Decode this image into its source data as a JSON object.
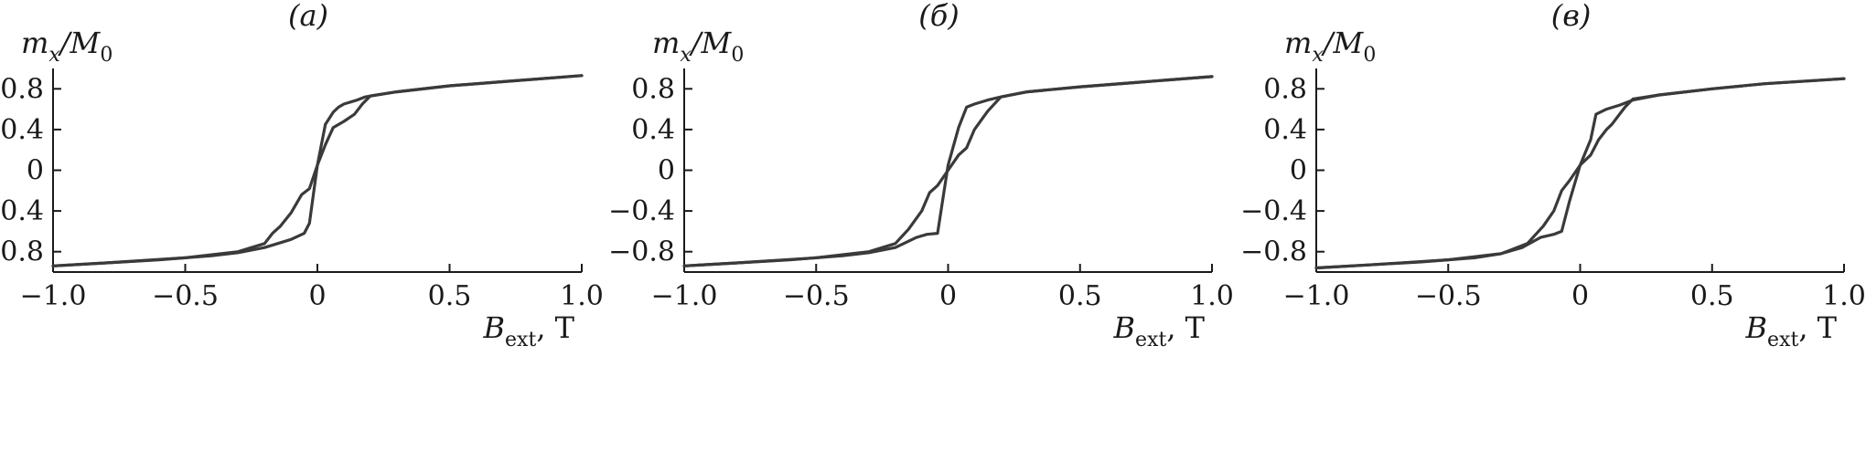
{
  "chart_data": [
    {
      "type": "line",
      "panel_label": "(а)",
      "ylabel_main": "m",
      "ylabel_sub": "x",
      "ylabel_rest": "/M",
      "ylabel_sub2": "0",
      "xlabel_main": "B",
      "xlabel_sub": "ext",
      "xlabel_unit": ", T",
      "xlim": [
        -1.0,
        1.0
      ],
      "ylim": [
        -1.0,
        1.0
      ],
      "xticks": [
        -1.0,
        -0.5,
        0,
        0.5,
        1.0
      ],
      "xtick_labels": [
        "−1.0",
        "−0.5",
        "0",
        "0.5",
        "1.0"
      ],
      "yticks": [
        -0.8,
        -0.4,
        0,
        0.4,
        0.8
      ],
      "ytick_labels": [
        "−0.8",
        "−0.4",
        "0",
        "0.4",
        "0.8"
      ],
      "series": [
        {
          "x": [
            -1.0,
            -0.8,
            -0.6,
            -0.4,
            -0.3,
            -0.2,
            -0.1,
            -0.05,
            -0.03,
            0,
            0.03,
            0.06,
            0.08,
            0.1,
            0.15,
            0.18,
            0.3,
            0.5,
            0.7,
            1.0
          ],
          "y": [
            -0.94,
            -0.91,
            -0.88,
            -0.84,
            -0.81,
            -0.76,
            -0.68,
            -0.62,
            -0.52,
            0.05,
            0.45,
            0.57,
            0.62,
            0.65,
            0.69,
            0.72,
            0.77,
            0.83,
            0.87,
            0.93
          ]
        },
        {
          "x": [
            1.0,
            0.7,
            0.5,
            0.3,
            0.2,
            0.17,
            0.14,
            0.1,
            0.06,
            0.03,
            0,
            -0.03,
            -0.06,
            -0.1,
            -0.14,
            -0.17,
            -0.2,
            -0.3,
            -0.5,
            -0.8,
            -1.0
          ],
          "y": [
            0.93,
            0.87,
            0.83,
            0.77,
            0.73,
            0.65,
            0.55,
            0.48,
            0.42,
            0.25,
            0.05,
            -0.18,
            -0.24,
            -0.42,
            -0.55,
            -0.62,
            -0.72,
            -0.8,
            -0.86,
            -0.91,
            -0.94
          ]
        }
      ]
    },
    {
      "type": "line",
      "panel_label": "(б)",
      "ylabel_main": "m",
      "ylabel_sub": "x",
      "ylabel_rest": "/M",
      "ylabel_sub2": "0",
      "xlabel_main": "B",
      "xlabel_sub": "ext",
      "xlabel_unit": ", T",
      "xlim": [
        -1.0,
        1.0
      ],
      "ylim": [
        -1.0,
        1.0
      ],
      "xticks": [
        -1.0,
        -0.5,
        0,
        0.5,
        1.0
      ],
      "xtick_labels": [
        "−1.0",
        "−0.5",
        "0",
        "0.5",
        "1.0"
      ],
      "yticks": [
        -0.8,
        -0.4,
        0,
        0.4,
        0.8
      ],
      "ytick_labels": [
        "−0.8",
        "−0.4",
        "0",
        "0.4",
        "0.8"
      ],
      "series": [
        {
          "x": [
            -1.0,
            -0.8,
            -0.6,
            -0.4,
            -0.3,
            -0.2,
            -0.12,
            -0.08,
            -0.04,
            0,
            0.04,
            0.07,
            0.1,
            0.15,
            0.2,
            0.3,
            0.5,
            0.7,
            1.0
          ],
          "y": [
            -0.94,
            -0.91,
            -0.88,
            -0.84,
            -0.81,
            -0.76,
            -0.66,
            -0.63,
            -0.62,
            0.05,
            0.42,
            0.62,
            0.65,
            0.69,
            0.72,
            0.77,
            0.82,
            0.86,
            0.92
          ]
        },
        {
          "x": [
            1.0,
            0.7,
            0.5,
            0.3,
            0.2,
            0.15,
            0.1,
            0.07,
            0.04,
            0,
            -0.04,
            -0.07,
            -0.1,
            -0.15,
            -0.2,
            -0.3,
            -0.5,
            -0.8,
            -1.0
          ],
          "y": [
            0.92,
            0.86,
            0.82,
            0.77,
            0.72,
            0.58,
            0.4,
            0.22,
            0.15,
            0.0,
            -0.15,
            -0.22,
            -0.4,
            -0.58,
            -0.72,
            -0.8,
            -0.86,
            -0.91,
            -0.94
          ]
        }
      ]
    },
    {
      "type": "line",
      "panel_label": "(в)",
      "ylabel_main": "m",
      "ylabel_sub": "x",
      "ylabel_rest": "/M",
      "ylabel_sub2": "0",
      "xlabel_main": "B",
      "xlabel_sub": "ext",
      "xlabel_unit": ", T",
      "xlim": [
        -1.0,
        1.0
      ],
      "ylim": [
        -1.0,
        1.0
      ],
      "xticks": [
        -1.0,
        -0.5,
        0,
        0.5,
        1.0
      ],
      "xtick_labels": [
        "−1.0",
        "−0.5",
        "0",
        "0.5",
        "1.0"
      ],
      "yticks": [
        -0.8,
        -0.4,
        0,
        0.4,
        0.8
      ],
      "ytick_labels": [
        "−0.8",
        "−0.4",
        "0",
        "0.4",
        "0.8"
      ],
      "series": [
        {
          "x": [
            -1.0,
            -0.8,
            -0.6,
            -0.4,
            -0.3,
            -0.22,
            -0.15,
            -0.1,
            -0.07,
            -0.04,
            0,
            0.04,
            0.06,
            0.1,
            0.15,
            0.2,
            0.3,
            0.5,
            0.7,
            1.0
          ],
          "y": [
            -0.96,
            -0.93,
            -0.9,
            -0.86,
            -0.82,
            -0.76,
            -0.66,
            -0.63,
            -0.6,
            -0.3,
            0.05,
            0.3,
            0.55,
            0.6,
            0.64,
            0.69,
            0.74,
            0.8,
            0.85,
            0.9
          ]
        },
        {
          "x": [
            1.0,
            0.7,
            0.5,
            0.3,
            0.2,
            0.17,
            0.12,
            0.1,
            0.07,
            0.04,
            0,
            -0.04,
            -0.07,
            -0.1,
            -0.14,
            -0.2,
            -0.3,
            -0.5,
            -0.8,
            -1.0
          ],
          "y": [
            0.9,
            0.85,
            0.8,
            0.74,
            0.7,
            0.62,
            0.45,
            0.4,
            0.3,
            0.15,
            0.05,
            -0.1,
            -0.2,
            -0.4,
            -0.55,
            -0.72,
            -0.82,
            -0.88,
            -0.93,
            -0.96
          ]
        }
      ]
    }
  ]
}
